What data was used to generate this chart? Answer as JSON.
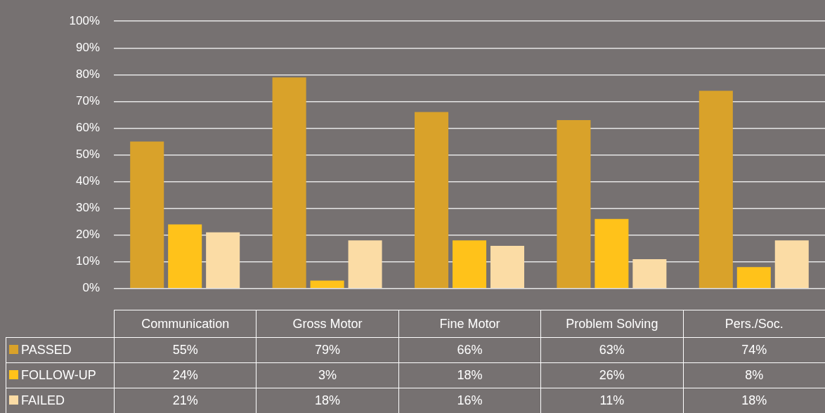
{
  "chart_data": {
    "type": "bar",
    "categories": [
      "Communication",
      "Gross Motor",
      "Fine Motor",
      "Problem Solving",
      "Pers./Soc."
    ],
    "series": [
      {
        "name": "PASSED",
        "color": "#d9a22a",
        "values": [
          55,
          79,
          66,
          63,
          74
        ],
        "value_labels": [
          "55%",
          "79%",
          "66%",
          "63%",
          "74%"
        ]
      },
      {
        "name": "FOLLOW-UP",
        "color": "#ffc21a",
        "values": [
          24,
          3,
          18,
          26,
          8
        ],
        "value_labels": [
          "24%",
          "3%",
          "18%",
          "26%",
          "8%"
        ]
      },
      {
        "name": "FAILED",
        "color": "#fbdca5",
        "values": [
          21,
          18,
          16,
          11,
          18
        ],
        "value_labels": [
          "21%",
          "18%",
          "16%",
          "11%",
          "18%"
        ]
      }
    ],
    "ylim": [
      0,
      100
    ],
    "yticks": [
      {
        "value": 0,
        "label": "0%"
      },
      {
        "value": 10,
        "label": "10%"
      },
      {
        "value": 20,
        "label": "20%"
      },
      {
        "value": 30,
        "label": "30%"
      },
      {
        "value": 40,
        "label": "40%"
      },
      {
        "value": 50,
        "label": "50%"
      },
      {
        "value": 60,
        "label": "60%"
      },
      {
        "value": 70,
        "label": "70%"
      },
      {
        "value": 80,
        "label": "80%"
      },
      {
        "value": 90,
        "label": "90%"
      },
      {
        "value": 100,
        "label": "100%"
      }
    ],
    "grid": "y",
    "legend": "bottom left"
  }
}
